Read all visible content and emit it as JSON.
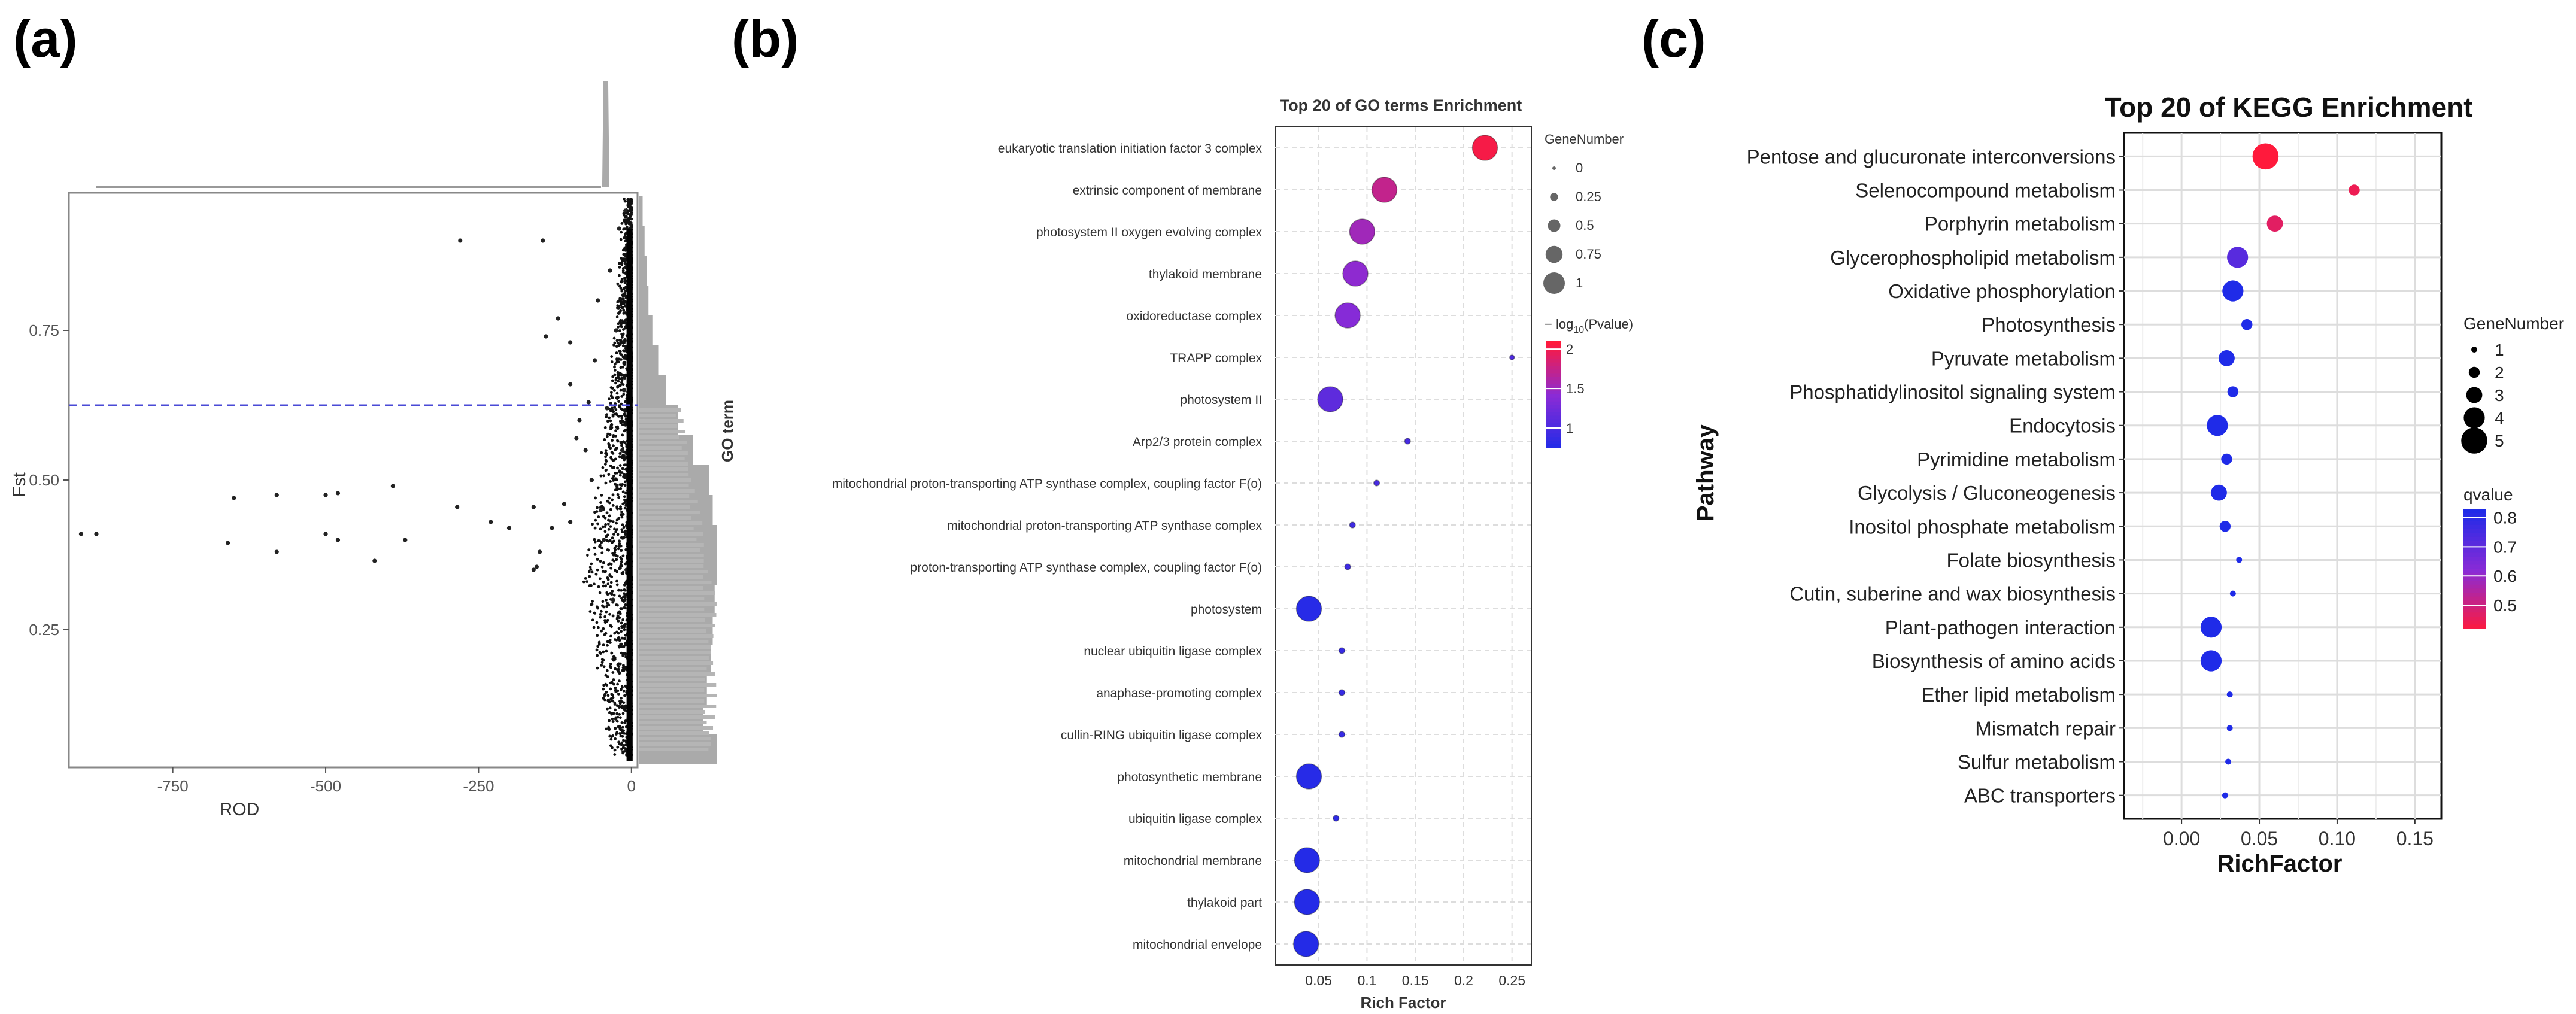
{
  "panels": {
    "a": {
      "label": "(a)"
    },
    "b": {
      "label": "(b)"
    },
    "c": {
      "label": "(c)"
    }
  },
  "colors": {
    "low": "#1f2be8",
    "mid": "#8a2bd6",
    "high": "#ff1a3c",
    "gray": "#aaaaaa",
    "frame": "#333333",
    "grid": "#dddddd",
    "threshold": "#4a4ad6"
  },
  "chart_data": [
    {
      "id": "a",
      "type": "scatter",
      "title": "",
      "xlabel": "ROD",
      "ylabel": "Fst",
      "xlim": [
        -920,
        10
      ],
      "ylim": [
        0.02,
        0.98
      ],
      "x_ticks": [
        -750,
        -500,
        -250,
        0
      ],
      "x_tick_labels": [
        "-750",
        "-500",
        "-250",
        "0"
      ],
      "y_ticks": [
        0.25,
        0.5,
        0.75
      ],
      "y_tick_labels": [
        "0.25",
        "0.50",
        "0.75"
      ],
      "threshold_y": 0.625,
      "points": [
        {
          "x": -280,
          "y": 0.9
        },
        {
          "x": -145,
          "y": 0.9
        },
        {
          "x": -120,
          "y": 0.77
        },
        {
          "x": -100,
          "y": 0.73
        },
        {
          "x": -140,
          "y": 0.74
        },
        {
          "x": -100,
          "y": 0.66
        },
        {
          "x": -650,
          "y": 0.47
        },
        {
          "x": -580,
          "y": 0.475
        },
        {
          "x": -500,
          "y": 0.475
        },
        {
          "x": -480,
          "y": 0.478
        },
        {
          "x": -390,
          "y": 0.49
        },
        {
          "x": -900,
          "y": 0.41
        },
        {
          "x": -875,
          "y": 0.41
        },
        {
          "x": -660,
          "y": 0.395
        },
        {
          "x": -580,
          "y": 0.38
        },
        {
          "x": -500,
          "y": 0.41
        },
        {
          "x": -480,
          "y": 0.4
        },
        {
          "x": -420,
          "y": 0.365
        },
        {
          "x": -370,
          "y": 0.4
        },
        {
          "x": -285,
          "y": 0.455
        },
        {
          "x": -230,
          "y": 0.43
        },
        {
          "x": -200,
          "y": 0.42
        },
        {
          "x": -160,
          "y": 0.455
        },
        {
          "x": -150,
          "y": 0.38
        },
        {
          "x": -130,
          "y": 0.42
        },
        {
          "x": -155,
          "y": 0.355
        },
        {
          "x": -160,
          "y": 0.35
        },
        {
          "x": -110,
          "y": 0.46
        },
        {
          "x": -100,
          "y": 0.43
        },
        {
          "x": -90,
          "y": 0.57
        },
        {
          "x": -85,
          "y": 0.6
        },
        {
          "x": -75,
          "y": 0.55
        },
        {
          "x": -70,
          "y": 0.63
        },
        {
          "x": -65,
          "y": 0.5
        },
        {
          "x": -60,
          "y": 0.7
        },
        {
          "x": -55,
          "y": 0.8
        },
        {
          "x": -50,
          "y": 0.45
        },
        {
          "x": -45,
          "y": 0.4
        },
        {
          "x": -40,
          "y": 0.62
        },
        {
          "x": -35,
          "y": 0.85
        },
        {
          "x": -30,
          "y": 0.3
        },
        {
          "x": -25,
          "y": 0.75
        },
        {
          "x": -20,
          "y": 0.92
        },
        {
          "x": -15,
          "y": 0.55
        },
        {
          "x": -12,
          "y": 0.65
        },
        {
          "x": -10,
          "y": 0.95
        },
        {
          "x": -8,
          "y": 0.35
        },
        {
          "x": -6,
          "y": 0.45
        },
        {
          "x": -5,
          "y": 0.25
        },
        {
          "x": -3,
          "y": 0.6
        },
        {
          "x": -2,
          "y": 0.2
        }
      ],
      "dense_band": {
        "description_free": true
      },
      "top_marginal_peak_x": -40,
      "right_histogram": {
        "y_bins": [
          0.95,
          0.9,
          0.85,
          0.8,
          0.75,
          0.7,
          0.65,
          0.6,
          0.55,
          0.5,
          0.45,
          0.4,
          0.35,
          0.3,
          0.25,
          0.2,
          0.15,
          0.1,
          0.05
        ],
        "counts": [
          2,
          3,
          4,
          5,
          7,
          10,
          14,
          20,
          28,
          36,
          38,
          40,
          40,
          39,
          38,
          37,
          35,
          33,
          40
        ]
      }
    },
    {
      "id": "b",
      "type": "scatter",
      "title": "Top 20 of GO terms Enrichment",
      "xlabel": "Rich Factor",
      "ylabel": "GO term",
      "xlim": [
        0.005,
        0.27
      ],
      "x_ticks": [
        0.05,
        0.1,
        0.15,
        0.2,
        0.25
      ],
      "x_tick_labels": [
        "0.05",
        "0.1",
        "0.15",
        "0.2",
        "0.25"
      ],
      "terms": [
        {
          "name": "eukaryotic translation initiation factor 3 complex",
          "x": 0.222,
          "size": 1.0,
          "color": 2.05
        },
        {
          "name": "extrinsic component of membrane",
          "x": 0.118,
          "size": 1.0,
          "color": 1.75
        },
        {
          "name": "photosystem II oxygen evolving complex",
          "x": 0.095,
          "size": 1.0,
          "color": 1.55
        },
        {
          "name": "thylakoid membrane",
          "x": 0.088,
          "size": 1.0,
          "color": 1.45
        },
        {
          "name": "oxidoreductase complex",
          "x": 0.08,
          "size": 1.0,
          "color": 1.4
        },
        {
          "name": "TRAPP complex",
          "x": 0.25,
          "size": 0.0,
          "color": 1.05
        },
        {
          "name": "photosystem II",
          "x": 0.062,
          "size": 1.0,
          "color": 1.15
        },
        {
          "name": "Arp2/3 protein complex",
          "x": 0.142,
          "size": 0.05,
          "color": 1.0
        },
        {
          "name": "mitochondrial proton-transporting ATP synthase complex, coupling factor F(o)",
          "x": 0.11,
          "size": 0.05,
          "color": 1.0
        },
        {
          "name": "mitochondrial proton-transporting ATP synthase complex",
          "x": 0.085,
          "size": 0.05,
          "color": 0.95
        },
        {
          "name": "proton-transporting ATP synthase complex, coupling factor F(o)",
          "x": 0.08,
          "size": 0.05,
          "color": 0.95
        },
        {
          "name": "photosystem",
          "x": 0.04,
          "size": 1.0,
          "color": 0.8
        },
        {
          "name": "nuclear ubiquitin ligase complex",
          "x": 0.074,
          "size": 0.05,
          "color": 0.9
        },
        {
          "name": "anaphase-promoting complex",
          "x": 0.074,
          "size": 0.05,
          "color": 0.9
        },
        {
          "name": "cullin-RING ubiquitin ligase complex",
          "x": 0.074,
          "size": 0.05,
          "color": 0.9
        },
        {
          "name": "photosynthetic membrane",
          "x": 0.04,
          "size": 1.0,
          "color": 0.8
        },
        {
          "name": "ubiquitin ligase complex",
          "x": 0.068,
          "size": 0.05,
          "color": 0.85
        },
        {
          "name": "mitochondrial membrane",
          "x": 0.038,
          "size": 1.0,
          "color": 0.78
        },
        {
          "name": "thylakoid part",
          "x": 0.038,
          "size": 1.0,
          "color": 0.78
        },
        {
          "name": "mitochondrial envelope",
          "x": 0.037,
          "size": 1.0,
          "color": 0.78
        }
      ],
      "legend_size": {
        "title": "GeneNumber",
        "labels": [
          "0",
          "0.25",
          "0.5",
          "0.75",
          "1"
        ],
        "values": [
          0,
          0.25,
          0.5,
          0.75,
          1
        ]
      },
      "legend_color": {
        "title_prefix": "− log",
        "title_sub": "10",
        "title_suffix": "(Pvalue)",
        "labels": [
          "2",
          "1.5",
          "1"
        ],
        "values": [
          2,
          1.5,
          1
        ],
        "range": [
          0.75,
          2.1
        ]
      }
    },
    {
      "id": "c",
      "type": "scatter",
      "title": "Top 20 of KEGG Enrichment",
      "xlabel": "RichFactor",
      "ylabel": "Pathway",
      "xlim": [
        -0.037,
        0.167
      ],
      "x_ticks": [
        0.0,
        0.05,
        0.1,
        0.15
      ],
      "x_tick_labels": [
        "0.00",
        "0.05",
        "0.10",
        "0.15"
      ],
      "pathways": [
        {
          "name": "Pentose and glucuronate interconversions",
          "x": 0.054,
          "size": 5,
          "q": 0.42
        },
        {
          "name": "Selenocompound metabolism",
          "x": 0.111,
          "size": 2,
          "q": 0.45
        },
        {
          "name": "Porphyrin metabolism",
          "x": 0.06,
          "size": 3,
          "q": 0.47
        },
        {
          "name": "Glycerophospholipid metabolism",
          "x": 0.036,
          "size": 4,
          "q": 0.72
        },
        {
          "name": "Oxidative phosphorylation",
          "x": 0.033,
          "size": 4,
          "q": 0.83
        },
        {
          "name": "Photosynthesis",
          "x": 0.042,
          "size": 2,
          "q": 0.83
        },
        {
          "name": "Pyruvate metabolism",
          "x": 0.029,
          "size": 3,
          "q": 0.83
        },
        {
          "name": "Phosphatidylinositol signaling system",
          "x": 0.033,
          "size": 2,
          "q": 0.83
        },
        {
          "name": "Endocytosis",
          "x": 0.023,
          "size": 4,
          "q": 0.83
        },
        {
          "name": "Pyrimidine metabolism",
          "x": 0.029,
          "size": 2,
          "q": 0.83
        },
        {
          "name": "Glycolysis / Gluconeogenesis",
          "x": 0.024,
          "size": 3,
          "q": 0.83
        },
        {
          "name": "Inositol phosphate metabolism",
          "x": 0.028,
          "size": 2,
          "q": 0.83
        },
        {
          "name": "Folate biosynthesis",
          "x": 0.037,
          "size": 1,
          "q": 0.83
        },
        {
          "name": "Cutin, suberine and wax biosynthesis",
          "x": 0.033,
          "size": 1,
          "q": 0.83
        },
        {
          "name": "Plant-pathogen interaction",
          "x": 0.019,
          "size": 4,
          "q": 0.83
        },
        {
          "name": "Biosynthesis of amino acids",
          "x": 0.019,
          "size": 4,
          "q": 0.83
        },
        {
          "name": "Ether lipid metabolism",
          "x": 0.031,
          "size": 1,
          "q": 0.83
        },
        {
          "name": "Mismatch repair",
          "x": 0.031,
          "size": 1,
          "q": 0.83
        },
        {
          "name": "Sulfur metabolism",
          "x": 0.03,
          "size": 1,
          "q": 0.83
        },
        {
          "name": "ABC transporters",
          "x": 0.028,
          "size": 1,
          "q": 0.83
        }
      ],
      "legend_size": {
        "title": "GeneNumber",
        "labels": [
          "1",
          "2",
          "3",
          "4",
          "5"
        ],
        "values": [
          1,
          2,
          3,
          4,
          5
        ]
      },
      "legend_color": {
        "title": "qvalue",
        "labels": [
          "0.8",
          "0.7",
          "0.6",
          "0.5"
        ],
        "values": [
          0.8,
          0.7,
          0.6,
          0.5
        ],
        "range": [
          0.42,
          0.83
        ]
      }
    }
  ]
}
